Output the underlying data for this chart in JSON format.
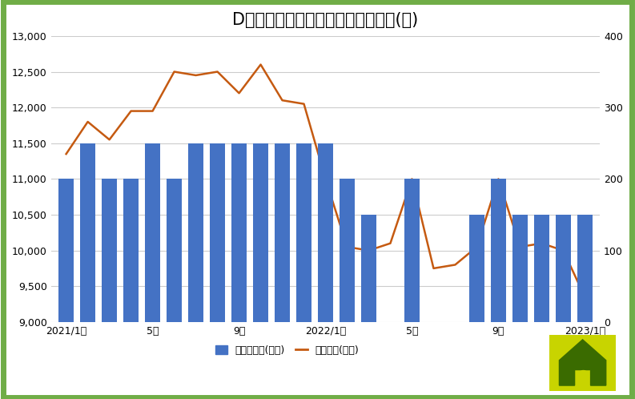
{
  "title": "Dコースの分配金と基準価額の推移(円)",
  "bar_values": [
    200,
    250,
    200,
    200,
    250,
    200,
    250,
    250,
    250,
    250,
    250,
    250,
    250,
    200,
    150,
    0,
    200,
    0,
    0,
    150,
    200,
    150,
    150,
    150,
    150
  ],
  "line_values": [
    11350,
    11800,
    11550,
    11950,
    11950,
    12500,
    12450,
    12500,
    12200,
    12600,
    12100,
    12050,
    11000,
    10050,
    10000,
    10100,
    11000,
    9750,
    9800,
    10050,
    11000,
    10050,
    10100,
    10000,
    9350
  ],
  "x_tick_labels": [
    "2021/1月",
    "5月",
    "9月",
    "2022/1月",
    "5月",
    "9月",
    "2023/1月"
  ],
  "x_tick_positions": [
    0,
    4,
    8,
    12,
    16,
    20,
    24
  ],
  "bar_color": "#4472C4",
  "line_color": "#C55A11",
  "left_ylim": [
    9000,
    13000
  ],
  "right_ylim": [
    0,
    400
  ],
  "left_yticks": [
    9000,
    9500,
    10000,
    10500,
    11000,
    11500,
    12000,
    12500,
    13000
  ],
  "right_yticks": [
    0,
    100,
    200,
    300,
    400
  ],
  "legend_bar_label": "分配金推移(右軸)",
  "legend_line_label": "基準価額(左軸)",
  "bg_color": "#FFFFFF",
  "border_color": "#70AD47",
  "title_fontsize": 15,
  "font_family": "IPAexGothic"
}
